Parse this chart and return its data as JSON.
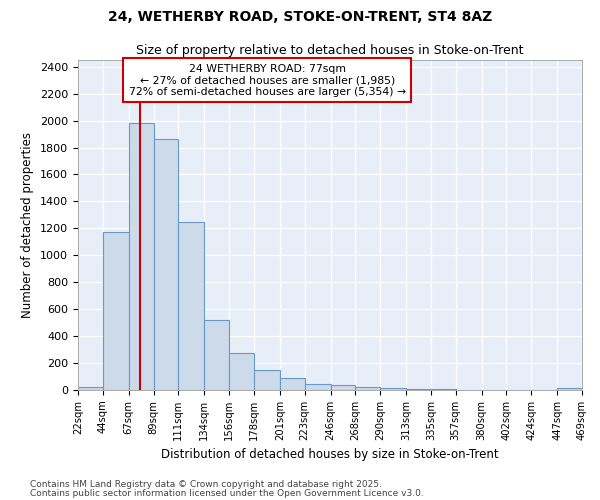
{
  "title1": "24, WETHERBY ROAD, STOKE-ON-TRENT, ST4 8AZ",
  "title2": "Size of property relative to detached houses in Stoke-on-Trent",
  "xlabel": "Distribution of detached houses by size in Stoke-on-Trent",
  "ylabel": "Number of detached properties",
  "bar_edges": [
    22,
    44,
    67,
    89,
    111,
    134,
    156,
    178,
    201,
    223,
    246,
    268,
    290,
    313,
    335,
    357,
    380,
    402,
    424,
    447,
    469
  ],
  "bar_heights": [
    25,
    1170,
    1985,
    1860,
    1245,
    520,
    275,
    150,
    90,
    45,
    40,
    20,
    12,
    8,
    5,
    3,
    2,
    1,
    1,
    15
  ],
  "bar_color": "#ccdaea",
  "bar_edge_color": "#6699cc",
  "red_line_x": 77,
  "annotation_line1": "24 WETHERBY ROAD: 77sqm",
  "annotation_line2": "← 27% of detached houses are smaller (1,985)",
  "annotation_line3": "72% of semi-detached houses are larger (5,354) →",
  "annotation_box_color": "#ffffff",
  "annotation_box_edge": "#cc0000",
  "red_line_color": "#cc0000",
  "ylim": [
    0,
    2450
  ],
  "yticks": [
    0,
    200,
    400,
    600,
    800,
    1000,
    1200,
    1400,
    1600,
    1800,
    2000,
    2200,
    2400
  ],
  "bg_color": "#e8eef8",
  "grid_color": "#ffffff",
  "footer1": "Contains HM Land Registry data © Crown copyright and database right 2025.",
  "footer2": "Contains public sector information licensed under the Open Government Licence v3.0.",
  "x_tick_labels": [
    "22sqm",
    "44sqm",
    "67sqm",
    "89sqm",
    "111sqm",
    "134sqm",
    "156sqm",
    "178sqm",
    "201sqm",
    "223sqm",
    "246sqm",
    "268sqm",
    "290sqm",
    "313sqm",
    "335sqm",
    "357sqm",
    "380sqm",
    "402sqm",
    "424sqm",
    "447sqm",
    "469sqm"
  ],
  "figsize": [
    6.0,
    5.0
  ],
  "dpi": 100
}
